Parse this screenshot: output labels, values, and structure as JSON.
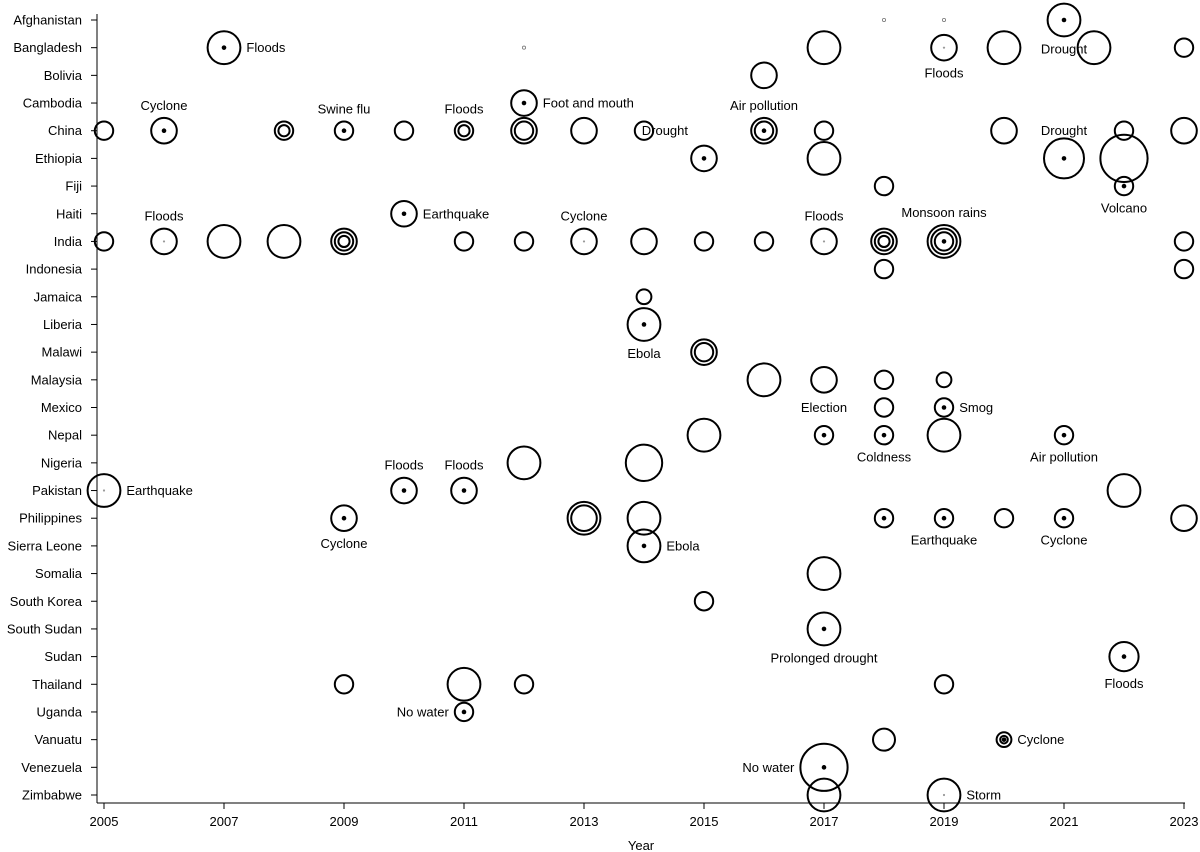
{
  "chart_data": {
    "type": "scatter",
    "title": "",
    "xlabel": "Year",
    "ylabel": "",
    "xlim": [
      2005,
      2023
    ],
    "x_ticks": [
      2005,
      2007,
      2009,
      2011,
      2013,
      2015,
      2017,
      2019,
      2021,
      2023
    ],
    "categories": [
      "Afghanistan",
      "Bangladesh",
      "Bolivia",
      "Cambodia",
      "China",
      "Ethiopia",
      "Fiji",
      "Haiti",
      "India",
      "Indonesia",
      "Jamaica",
      "Liberia",
      "Malawi",
      "Malaysia",
      "Mexico",
      "Nepal",
      "Nigeria",
      "Pakistan",
      "Philippines",
      "Sierra Leone",
      "Somalia",
      "South Korea",
      "South Sudan",
      "Sudan",
      "Thailand",
      "Uganda",
      "Vanuatu",
      "Venezuela",
      "Zimbabwe"
    ],
    "grid": false,
    "size_legend": "none",
    "points": [
      {
        "country": "Afghanistan",
        "year": 2018,
        "size": 1,
        "center": "none",
        "rings": 1
      },
      {
        "country": "Afghanistan",
        "year": 2019,
        "size": 1,
        "center": "none",
        "rings": 1
      },
      {
        "country": "Afghanistan",
        "year": 2021,
        "size": 4,
        "center": "dot",
        "rings": 1
      },
      {
        "country": "Bangladesh",
        "year": 2007,
        "size": 4,
        "center": "dot",
        "rings": 1
      },
      {
        "country": "Bangladesh",
        "year": 2012,
        "size": 1,
        "center": "none",
        "rings": 1
      },
      {
        "country": "Bangladesh",
        "year": 2017,
        "size": 4,
        "center": "none",
        "rings": 1
      },
      {
        "country": "Bangladesh",
        "year": 2019,
        "size": 3,
        "center": "small",
        "rings": 1
      },
      {
        "country": "Bangladesh",
        "year": 2020,
        "size": 4,
        "center": "none",
        "rings": 1
      },
      {
        "country": "Bangladesh",
        "year": 2021.5,
        "size": 4,
        "center": "none",
        "rings": 1
      },
      {
        "country": "Bangladesh",
        "year": 2023,
        "size": 2,
        "center": "none",
        "rings": 1
      },
      {
        "country": "Bolivia",
        "year": 2016,
        "size": 3,
        "center": "none",
        "rings": 1
      },
      {
        "country": "Cambodia",
        "year": 2012,
        "size": 3,
        "center": "dot",
        "rings": 1
      },
      {
        "country": "China",
        "year": 2005,
        "size": 2,
        "center": "none",
        "rings": 1
      },
      {
        "country": "China",
        "year": 2006,
        "size": 3,
        "center": "dot",
        "rings": 1
      },
      {
        "country": "China",
        "year": 2008,
        "size": 2,
        "center": "none",
        "rings": 2
      },
      {
        "country": "China",
        "year": 2009,
        "size": 2,
        "center": "dot",
        "rings": 1
      },
      {
        "country": "China",
        "year": 2010,
        "size": 2,
        "center": "none",
        "rings": 1
      },
      {
        "country": "China",
        "year": 2011,
        "size": 2,
        "center": "none",
        "rings": 3
      },
      {
        "country": "China",
        "year": 2012,
        "size": 3,
        "center": "none",
        "rings": 2
      },
      {
        "country": "China",
        "year": 2013,
        "size": 3,
        "center": "none",
        "rings": 1
      },
      {
        "country": "China",
        "year": 2014,
        "size": 2,
        "center": "none",
        "rings": 1
      },
      {
        "country": "China",
        "year": 2016,
        "size": 3,
        "center": "dot",
        "rings": 2
      },
      {
        "country": "China",
        "year": 2017,
        "size": 2,
        "center": "none",
        "rings": 1
      },
      {
        "country": "China",
        "year": 2020,
        "size": 3,
        "center": "none",
        "rings": 1
      },
      {
        "country": "China",
        "year": 2022,
        "size": 2,
        "center": "none",
        "rings": 1
      },
      {
        "country": "China",
        "year": 2023,
        "size": 3,
        "center": "none",
        "rings": 1
      },
      {
        "country": "Ethiopia",
        "year": 2015,
        "size": 3,
        "center": "dot",
        "rings": 1
      },
      {
        "country": "Ethiopia",
        "year": 2017,
        "size": 4,
        "center": "none",
        "rings": 1
      },
      {
        "country": "Ethiopia",
        "year": 2021,
        "size": 5,
        "center": "dot",
        "rings": 1
      },
      {
        "country": "Ethiopia",
        "year": 2022,
        "size": 6,
        "center": "none",
        "rings": 1
      },
      {
        "country": "Fiji",
        "year": 2018,
        "size": 2,
        "center": "none",
        "rings": 1
      },
      {
        "country": "Fiji",
        "year": 2022,
        "size": 2,
        "center": "dot",
        "rings": 1
      },
      {
        "country": "Haiti",
        "year": 2010,
        "size": 3,
        "center": "dot",
        "rings": 1
      },
      {
        "country": "India",
        "year": 2005,
        "size": 2,
        "center": "none",
        "rings": 1
      },
      {
        "country": "India",
        "year": 2006,
        "size": 3,
        "center": "small",
        "rings": 1
      },
      {
        "country": "India",
        "year": 2007,
        "size": 4,
        "center": "none",
        "rings": 1
      },
      {
        "country": "India",
        "year": 2008,
        "size": 4,
        "center": "none",
        "rings": 1
      },
      {
        "country": "India",
        "year": 2009,
        "size": 3,
        "center": "none",
        "rings": 3
      },
      {
        "country": "India",
        "year": 2011,
        "size": 2,
        "center": "none",
        "rings": 1
      },
      {
        "country": "India",
        "year": 2012,
        "size": 2,
        "center": "none",
        "rings": 1
      },
      {
        "country": "India",
        "year": 2013,
        "size": 3,
        "center": "small",
        "rings": 1
      },
      {
        "country": "India",
        "year": 2014,
        "size": 3,
        "center": "none",
        "rings": 1
      },
      {
        "country": "India",
        "year": 2015,
        "size": 2,
        "center": "none",
        "rings": 1
      },
      {
        "country": "India",
        "year": 2016,
        "size": 2,
        "center": "none",
        "rings": 1
      },
      {
        "country": "India",
        "year": 2017,
        "size": 3,
        "center": "small",
        "rings": 1
      },
      {
        "country": "India",
        "year": 2018,
        "size": 3,
        "center": "none",
        "rings": 3
      },
      {
        "country": "India",
        "year": 2019,
        "size": 4,
        "center": "dot",
        "rings": 3
      },
      {
        "country": "India",
        "year": 2023,
        "size": 2,
        "center": "none",
        "rings": 1
      },
      {
        "country": "Indonesia",
        "year": 2018,
        "size": 2,
        "center": "none",
        "rings": 1
      },
      {
        "country": "Indonesia",
        "year": 2023,
        "size": 2,
        "center": "none",
        "rings": 1
      },
      {
        "country": "Jamaica",
        "year": 2014,
        "size": 1.5,
        "center": "none",
        "rings": 1
      },
      {
        "country": "Liberia",
        "year": 2014,
        "size": 4,
        "center": "dot",
        "rings": 1
      },
      {
        "country": "Malawi",
        "year": 2015,
        "size": 3,
        "center": "none",
        "rings": 2
      },
      {
        "country": "Malaysia",
        "year": 2016,
        "size": 4,
        "center": "none",
        "rings": 1
      },
      {
        "country": "Malaysia",
        "year": 2017,
        "size": 3,
        "center": "none",
        "rings": 1
      },
      {
        "country": "Malaysia",
        "year": 2018,
        "size": 2,
        "center": "none",
        "rings": 1
      },
      {
        "country": "Malaysia",
        "year": 2019,
        "size": 1.5,
        "center": "none",
        "rings": 1
      },
      {
        "country": "Mexico",
        "year": 2018,
        "size": 2,
        "center": "none",
        "rings": 1
      },
      {
        "country": "Mexico",
        "year": 2019,
        "size": 2,
        "center": "dot",
        "rings": 1
      },
      {
        "country": "Nepal",
        "year": 2015,
        "size": 4,
        "center": "none",
        "rings": 1
      },
      {
        "country": "Nepal",
        "year": 2017,
        "size": 2,
        "center": "dot",
        "rings": 1
      },
      {
        "country": "Nepal",
        "year": 2018,
        "size": 2,
        "center": "dot",
        "rings": 1
      },
      {
        "country": "Nepal",
        "year": 2019,
        "size": 4,
        "center": "none",
        "rings": 1
      },
      {
        "country": "Nepal",
        "year": 2021,
        "size": 2,
        "center": "dot",
        "rings": 1
      },
      {
        "country": "Nigeria",
        "year": 2012,
        "size": 4,
        "center": "none",
        "rings": 1
      },
      {
        "country": "Nigeria",
        "year": 2014,
        "size": 4.5,
        "center": "none",
        "rings": 1
      },
      {
        "country": "Pakistan",
        "year": 2005,
        "size": 4,
        "center": "small",
        "rings": 1
      },
      {
        "country": "Pakistan",
        "year": 2010,
        "size": 3,
        "center": "dot",
        "rings": 1
      },
      {
        "country": "Pakistan",
        "year": 2011,
        "size": 3,
        "center": "dot",
        "rings": 1
      },
      {
        "country": "Pakistan",
        "year": 2022,
        "size": 4,
        "center": "none",
        "rings": 1
      },
      {
        "country": "Philippines",
        "year": 2009,
        "size": 3,
        "center": "dot",
        "rings": 1
      },
      {
        "country": "Philippines",
        "year": 2013,
        "size": 4,
        "center": "none",
        "rings": 2
      },
      {
        "country": "Philippines",
        "year": 2014,
        "size": 4,
        "center": "none",
        "rings": 1
      },
      {
        "country": "Philippines",
        "year": 2018,
        "size": 2,
        "center": "dot",
        "rings": 1
      },
      {
        "country": "Philippines",
        "year": 2019,
        "size": 2,
        "center": "dot",
        "rings": 1
      },
      {
        "country": "Philippines",
        "year": 2020,
        "size": 2,
        "center": "none",
        "rings": 1
      },
      {
        "country": "Philippines",
        "year": 2021,
        "size": 2,
        "center": "dot",
        "rings": 1
      },
      {
        "country": "Philippines",
        "year": 2023,
        "size": 3,
        "center": "none",
        "rings": 1
      },
      {
        "country": "Sierra Leone",
        "year": 2014,
        "size": 4,
        "center": "dot",
        "rings": 1
      },
      {
        "country": "Somalia",
        "year": 2017,
        "size": 4,
        "center": "none",
        "rings": 1
      },
      {
        "country": "South Korea",
        "year": 2015,
        "size": 2,
        "center": "none",
        "rings": 1
      },
      {
        "country": "South Sudan",
        "year": 2017,
        "size": 4,
        "center": "dot",
        "rings": 1
      },
      {
        "country": "Sudan",
        "year": 2022,
        "size": 3.5,
        "center": "dot",
        "rings": 1
      },
      {
        "country": "Thailand",
        "year": 2009,
        "size": 2,
        "center": "none",
        "rings": 1
      },
      {
        "country": "Thailand",
        "year": 2011,
        "size": 4,
        "center": "none",
        "rings": 1
      },
      {
        "country": "Thailand",
        "year": 2012,
        "size": 2,
        "center": "none",
        "rings": 1
      },
      {
        "country": "Thailand",
        "year": 2019,
        "size": 2,
        "center": "none",
        "rings": 1
      },
      {
        "country": "Uganda",
        "year": 2011,
        "size": 2,
        "center": "dot",
        "rings": 1
      },
      {
        "country": "Vanuatu",
        "year": 2018,
        "size": 2.5,
        "center": "none",
        "rings": 1
      },
      {
        "country": "Vanuatu",
        "year": 2020,
        "size": 1.5,
        "center": "dot",
        "rings": 2
      },
      {
        "country": "Venezuela",
        "year": 2017,
        "size": 6,
        "center": "dot",
        "rings": 1
      },
      {
        "country": "Zimbabwe",
        "year": 2017,
        "size": 4,
        "center": "none",
        "rings": 1
      },
      {
        "country": "Zimbabwe",
        "year": 2019,
        "size": 4,
        "center": "small",
        "rings": 1
      }
    ],
    "annotations": [
      {
        "text": "Floods",
        "country": "Bangladesh",
        "year": 2007,
        "position": "right"
      },
      {
        "text": "Drought",
        "country": "Afghanistan",
        "year": 2021,
        "position": "below"
      },
      {
        "text": "Floods",
        "country": "Bangladesh",
        "year": 2019,
        "position": "below"
      },
      {
        "text": "Cyclone",
        "country": "China",
        "year": 2006,
        "position": "above"
      },
      {
        "text": "Swine flu",
        "country": "China",
        "year": 2009,
        "position": "above"
      },
      {
        "text": "Floods",
        "country": "China",
        "year": 2011,
        "position": "above"
      },
      {
        "text": "Foot and mouth",
        "country": "Cambodia",
        "year": 2012,
        "position": "right"
      },
      {
        "text": "Air pollution",
        "country": "China",
        "year": 2016,
        "position": "above"
      },
      {
        "text": "Drought",
        "country": "China",
        "year": 2015,
        "position": "left"
      },
      {
        "text": "Drought",
        "country": "China",
        "year": 2021,
        "position": "on-row"
      },
      {
        "text": "Floods",
        "country": "India",
        "year": 2006,
        "position": "above"
      },
      {
        "text": "Earthquake",
        "country": "Haiti",
        "year": 2010,
        "position": "right"
      },
      {
        "text": "Cyclone",
        "country": "India",
        "year": 2013,
        "position": "above"
      },
      {
        "text": "Floods",
        "country": "India",
        "year": 2017,
        "position": "above"
      },
      {
        "text": "Monsoon rains",
        "country": "India",
        "year": 2019,
        "position": "above"
      },
      {
        "text": "Volcano",
        "country": "Fiji",
        "year": 2022,
        "position": "below"
      },
      {
        "text": "Ebola",
        "country": "Liberia",
        "year": 2014,
        "position": "below"
      },
      {
        "text": "Election",
        "country": "Mexico",
        "year": 2017,
        "position": "on-row"
      },
      {
        "text": "Smog",
        "country": "Mexico",
        "year": 2019,
        "position": "right"
      },
      {
        "text": "Coldness",
        "country": "Nepal",
        "year": 2018,
        "position": "below"
      },
      {
        "text": "Air pollution",
        "country": "Nepal",
        "year": 2021,
        "position": "below"
      },
      {
        "text": "Floods",
        "country": "Pakistan",
        "year": 2010,
        "position": "above"
      },
      {
        "text": "Floods",
        "country": "Pakistan",
        "year": 2011,
        "position": "above"
      },
      {
        "text": "Earthquake",
        "country": "Pakistan",
        "year": 2005,
        "position": "right"
      },
      {
        "text": "Cyclone",
        "country": "Philippines",
        "year": 2009,
        "position": "below"
      },
      {
        "text": "Ebola",
        "country": "Sierra Leone",
        "year": 2014,
        "position": "right"
      },
      {
        "text": "Earthquake",
        "country": "Philippines",
        "year": 2019,
        "position": "below"
      },
      {
        "text": "Cyclone",
        "country": "Philippines",
        "year": 2021,
        "position": "below"
      },
      {
        "text": "Prolonged drought",
        "country": "South Sudan",
        "year": 2017,
        "position": "below"
      },
      {
        "text": "Floods",
        "country": "Sudan",
        "year": 2022,
        "position": "below"
      },
      {
        "text": "No water",
        "country": "Uganda",
        "year": 2011,
        "position": "left"
      },
      {
        "text": "Cyclone",
        "country": "Vanuatu",
        "year": 2020,
        "position": "right"
      },
      {
        "text": "No water",
        "country": "Venezuela",
        "year": 2017,
        "position": "left"
      },
      {
        "text": "Storm",
        "country": "Zimbabwe",
        "year": 2019,
        "position": "right"
      }
    ]
  }
}
